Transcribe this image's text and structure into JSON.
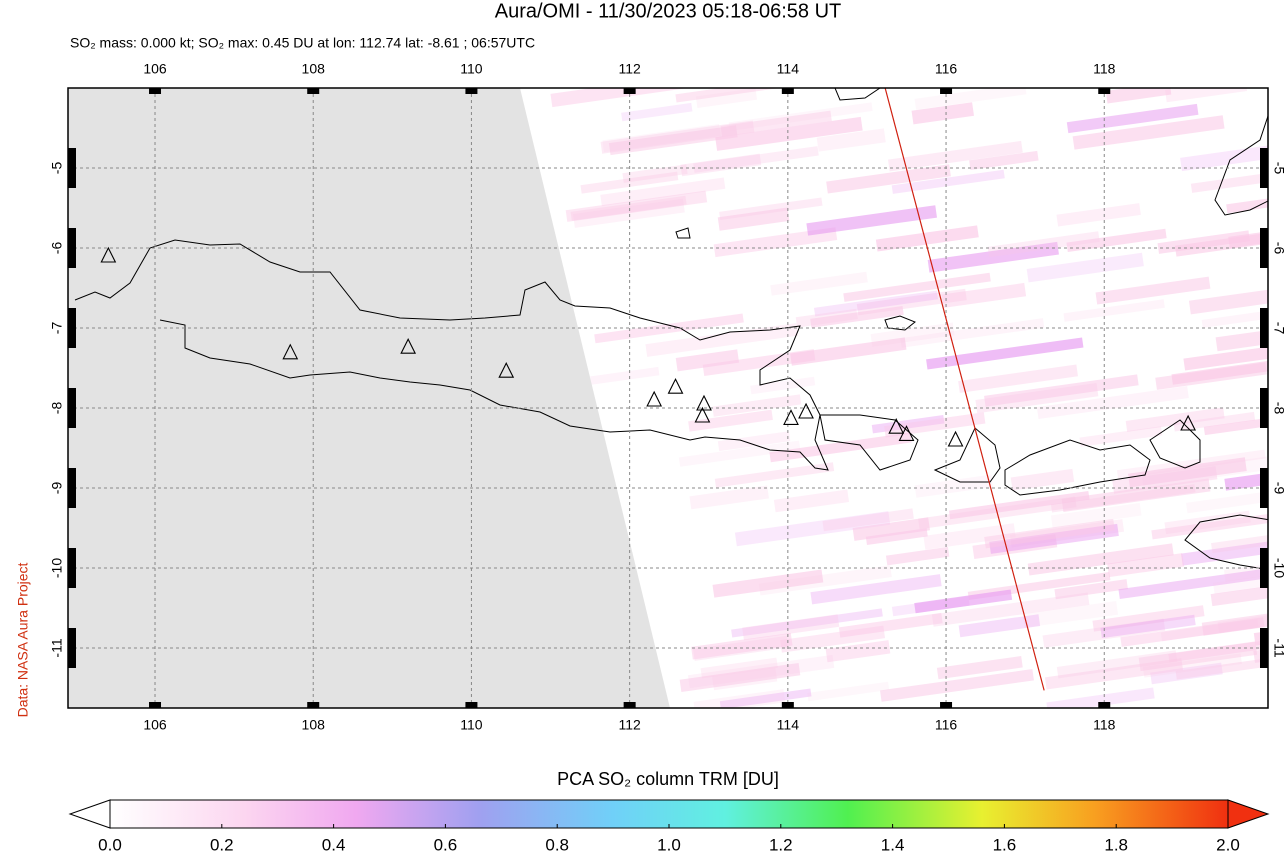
{
  "map": {
    "title": "Aura/OMI - 11/30/2023 05:18-06:58 UT",
    "subtitle": "SO₂ mass: 0.000 kt; SO₂ max: 0.45 DU at lon: 112.74 lat: -8.61 ; 06:57UTC",
    "credit": "Data: NASA Aura Project",
    "lonlim": [
      104.9,
      120.07
    ],
    "latlim": [
      -11.75,
      -4
    ],
    "lonticks": [
      106,
      108,
      110,
      112,
      114,
      116,
      118
    ],
    "latticks": [
      -5,
      -6,
      -7,
      -8,
      -9,
      -10,
      -11
    ],
    "orbit_track": {
      "lon": [
        115.23,
        117.24
      ],
      "lat": [
        -4,
        -11.53
      ]
    },
    "volcanoes": [
      [
        107.71,
        -7.31
      ],
      [
        109.2,
        -7.24
      ],
      [
        110.44,
        -7.54
      ],
      [
        105.41,
        -6.1
      ],
      [
        112.31,
        -7.9
      ],
      [
        112.58,
        -7.74
      ],
      [
        112.94,
        -7.95
      ],
      [
        112.92,
        -8.1
      ],
      [
        114.04,
        -8.13
      ],
      [
        114.23,
        -8.05
      ],
      [
        115.37,
        -8.24
      ],
      [
        115.5,
        -8.33
      ],
      [
        116.12,
        -8.4
      ],
      [
        119.06,
        -8.2
      ]
    ]
  },
  "colorbar": {
    "label": "PCA SO₂ column TRM [DU]",
    "lim": [
      0,
      2
    ],
    "ticks": [
      {
        "value": 0,
        "label": "0.0"
      },
      0.2,
      0.4,
      0.6,
      0.8,
      {
        "value": 1,
        "label": "1.0"
      },
      1.2,
      1.4,
      1.6,
      1.8,
      {
        "value": 2,
        "label": "2.0"
      }
    ]
  }
}
